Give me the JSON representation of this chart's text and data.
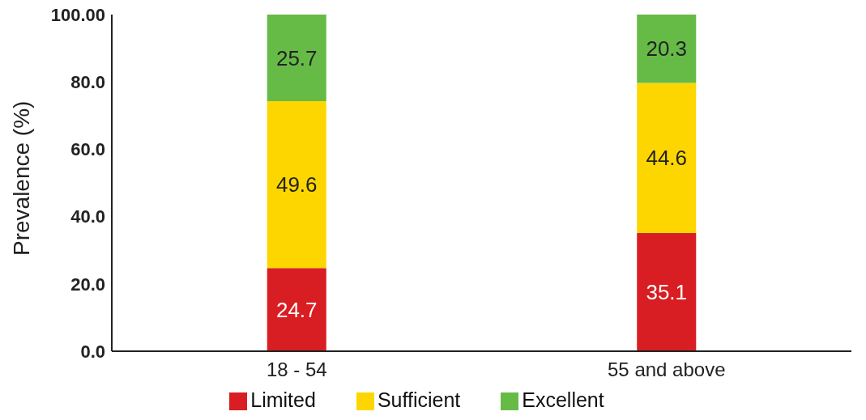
{
  "chart_data": {
    "type": "bar",
    "stacked": true,
    "ylabel": "Prevalence (%)",
    "categories": [
      "18 - 54",
      "55 and above"
    ],
    "series": [
      {
        "name": "Limited",
        "color": "#d81e22",
        "values": [
          24.7,
          35.1
        ]
      },
      {
        "name": "Sufficient",
        "color": "#fdd600",
        "values": [
          49.6,
          44.6
        ]
      },
      {
        "name": "Excellent",
        "color": "#66bb47",
        "values": [
          25.7,
          20.3
        ]
      }
    ],
    "ylim": [
      0,
      100
    ],
    "yticks": [
      {
        "value": 0,
        "label": "0.0"
      },
      {
        "value": 20,
        "label": "20.0"
      },
      {
        "value": 40,
        "label": "40.0"
      },
      {
        "value": 60,
        "label": "60.0"
      },
      {
        "value": 80,
        "label": "80.0"
      },
      {
        "value": 100,
        "label": "100.00"
      }
    ],
    "grid": false,
    "legend": "bottom",
    "data_labels": true
  }
}
